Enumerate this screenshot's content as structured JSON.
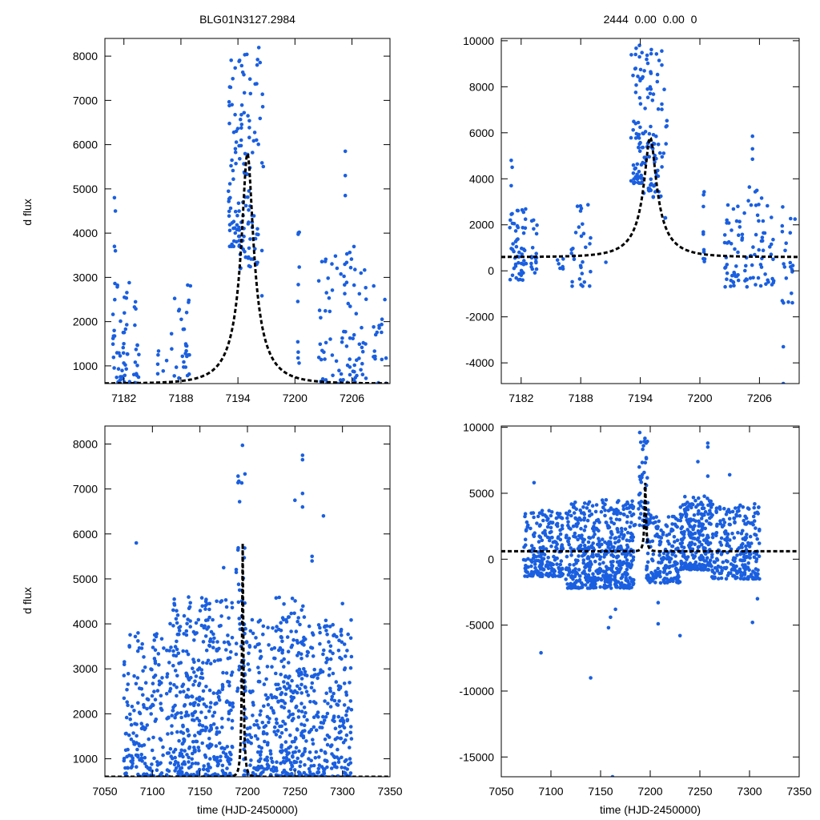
{
  "figure": {
    "title_left": "BLG01N3127.2984",
    "title_right": "2444  0.00  0.00  0",
    "ylabel": "d flux",
    "xlabel": "time (HJD-2450000)"
  },
  "colors": {
    "points": "#1a5fe0",
    "model": "#000000",
    "axes": "#000000"
  },
  "chart_data": [
    {
      "id": "top-left",
      "type": "scatter",
      "xlim": [
        7180,
        7210
      ],
      "ylim": [
        600,
        8400
      ],
      "xticks": [
        7182,
        7188,
        7194,
        7200,
        7206
      ],
      "yticks": [
        1000,
        2000,
        3000,
        4000,
        5000,
        6000,
        7000,
        8000
      ],
      "series": [
        {
          "name": "observations",
          "kind": "scatter",
          "clusters": [
            {
              "x": [
                7180.8,
                7182.6
              ],
              "y": [
                600,
                2900
              ],
              "n": 45,
              "outliers": [
                [
                  7181.0,
                  4800
                ],
                [
                  7181.1,
                  4500
                ],
                [
                  7181.0,
                  3700
                ],
                [
                  7181.1,
                  3600
                ]
              ]
            },
            {
              "x": [
                7183.0,
                7183.6
              ],
              "y": [
                600,
                2500
              ],
              "n": 18
            },
            {
              "x": [
                7185.5,
                7186.5
              ],
              "y": [
                700,
                1400
              ],
              "n": 6
            },
            {
              "x": [
                7187.0,
                7189.0
              ],
              "y": [
                700,
                3050
              ],
              "n": 30
            },
            {
              "x": [
                7193.0,
                7194.2
              ],
              "y": [
                3700,
                8000
              ],
              "n": 60
            },
            {
              "x": [
                7194.2,
                7196.2
              ],
              "y": [
                3200,
                8200
              ],
              "n": 80
            },
            {
              "x": [
                7196.3,
                7196.7
              ],
              "y": [
                2300,
                8100
              ],
              "n": 8
            },
            {
              "x": [
                7200.3,
                7200.5
              ],
              "y": [
                600,
                4050
              ],
              "n": 10
            },
            {
              "x": [
                7202.5,
                7207.5
              ],
              "y": [
                600,
                3700
              ],
              "n": 90,
              "outliers": [
                [
                  7205.3,
                  5850
                ],
                [
                  7205.3,
                  5300
                ],
                [
                  7205.3,
                  4850
                ]
              ]
            },
            {
              "x": [
                7208.2,
                7209.6
              ],
              "y": [
                600,
                2850
              ],
              "n": 20
            }
          ]
        },
        {
          "name": "model",
          "kind": "line",
          "model": {
            "t0": 7195.0,
            "tE": 3.4,
            "u0": 0.17,
            "fs": 1050,
            "fb": -450
          }
        }
      ]
    },
    {
      "id": "top-right",
      "type": "scatter",
      "xlim": [
        7180,
        7210
      ],
      "ylim": [
        -4900,
        10100
      ],
      "xticks": [
        7182,
        7188,
        7194,
        7200,
        7206
      ],
      "yticks": [
        -4000,
        -2000,
        0,
        2000,
        4000,
        6000,
        8000,
        10000
      ],
      "series": [
        {
          "name": "observations",
          "kind": "scatter",
          "clusters": [
            {
              "x": [
                7180.8,
                7182.6
              ],
              "y": [
                -400,
                2800
              ],
              "n": 55,
              "outliers": [
                [
                  7181.0,
                  4800
                ],
                [
                  7181.1,
                  4500
                ],
                [
                  7181.0,
                  3700
                ]
              ]
            },
            {
              "x": [
                7183.0,
                7183.6
              ],
              "y": [
                -300,
                2500
              ],
              "n": 18
            },
            {
              "x": [
                7185.5,
                7186.5
              ],
              "y": [
                -100,
                1400
              ],
              "n": 6
            },
            {
              "x": [
                7187.0,
                7189.0
              ],
              "y": [
                -700,
                3050
              ],
              "n": 30
            },
            {
              "x": [
                7190.5,
                7190.6
              ],
              "y": [
                350,
                400
              ],
              "n": 1
            },
            {
              "x": [
                7193.0,
                7194.2
              ],
              "y": [
                3800,
                10000
              ],
              "n": 60
            },
            {
              "x": [
                7194.2,
                7196.2
              ],
              "y": [
                3200,
                9700
              ],
              "n": 80
            },
            {
              "x": [
                7196.3,
                7196.7
              ],
              "y": [
                2300,
                8100
              ],
              "n": 8
            },
            {
              "x": [
                7200.3,
                7200.5
              ],
              "y": [
                400,
                4050
              ],
              "n": 10
            },
            {
              "x": [
                7202.5,
                7207.5
              ],
              "y": [
                -700,
                3700
              ],
              "n": 95,
              "outliers": [
                [
                  7205.3,
                  5850
                ],
                [
                  7205.3,
                  5300
                ],
                [
                  7205.3,
                  4850
                ]
              ]
            },
            {
              "x": [
                7208.2,
                7209.6
              ],
              "y": [
                -1500,
                2850
              ],
              "n": 20,
              "outliers": [
                [
                  7208.4,
                  -3300
                ],
                [
                  7208.4,
                  -4900
                ],
                [
                  7208.3,
                  -1300
                ]
              ]
            }
          ]
        },
        {
          "name": "model",
          "kind": "line",
          "model": {
            "t0": 7195.0,
            "tE": 3.4,
            "u0": 0.17,
            "fs": 1050,
            "fb": -450
          }
        }
      ]
    },
    {
      "id": "bottom-left",
      "type": "scatter",
      "xlim": [
        7050,
        7350
      ],
      "ylim": [
        600,
        8400
      ],
      "xticks": [
        7050,
        7100,
        7150,
        7200,
        7250,
        7300,
        7350
      ],
      "yticks": [
        1000,
        2000,
        3000,
        4000,
        5000,
        6000,
        7000,
        8000
      ],
      "series": [
        {
          "name": "observations",
          "kind": "scatter",
          "clusters": [
            {
              "x": [
                7070,
                7112
              ],
              "y": [
                600,
                3800
              ],
              "n": 170,
              "outliers": [
                [
                  7083,
                  5800
                ]
              ]
            },
            {
              "x": [
                7115,
                7185
              ],
              "y": [
                600,
                4600
              ],
              "n": 420,
              "outliers": [
                [
                  7123,
                  4550
                ],
                [
                  7123,
                  4450
                ],
                [
                  7175,
                  5250
                ]
              ]
            },
            {
              "x": [
                7188,
                7198
              ],
              "y": [
                2500,
                8200
              ],
              "n": 45
            },
            {
              "x": [
                7196,
                7230
              ],
              "y": [
                600,
                4100
              ],
              "n": 150
            },
            {
              "x": [
                7230,
                7262
              ],
              "y": [
                600,
                4600
              ],
              "n": 230,
              "outliers": [
                [
                  7250,
                  6750
                ],
                [
                  7258,
                  7750
                ],
                [
                  7258,
                  7650
                ],
                [
                  7258,
                  6900
                ],
                [
                  7258,
                  6600
                ],
                [
                  7268,
                  5500
                ],
                [
                  7268,
                  5400
                ]
              ]
            },
            {
              "x": [
                7262,
                7310
              ],
              "y": [
                600,
                4100
              ],
              "n": 230,
              "outliers": [
                [
                  7280,
                  6400
                ],
                [
                  7300,
                  4450
                ]
              ]
            }
          ]
        },
        {
          "name": "model",
          "kind": "line",
          "model": {
            "t0": 7195.0,
            "tE": 3.4,
            "u0": 0.17,
            "fs": 1050,
            "fb": -450
          }
        }
      ]
    },
    {
      "id": "bottom-right",
      "type": "scatter",
      "xlim": [
        7050,
        7350
      ],
      "ylim": [
        -16500,
        10100
      ],
      "xticks": [
        7050,
        7100,
        7150,
        7200,
        7250,
        7300,
        7350
      ],
      "yticks": [
        -15000,
        -10000,
        -5000,
        0,
        5000,
        10000
      ],
      "series": [
        {
          "name": "observations",
          "kind": "scatter",
          "clusters": [
            {
              "x": [
                7072,
                7112
              ],
              "y": [
                -1300,
                3700
              ],
              "n": 220,
              "outliers": [
                [
                  7083,
                  5800
                ],
                [
                  7090,
                  -7100
                ]
              ]
            },
            {
              "x": [
                7115,
                7185
              ],
              "y": [
                -2200,
                4500
              ],
              "n": 520,
              "outliers": [
                [
                  7140,
                  -9000
                ],
                [
                  7162,
                  -16500
                ],
                [
                  7158,
                  -5200
                ],
                [
                  7160,
                  -4400
                ],
                [
                  7165,
                  -3800
                ]
              ]
            },
            {
              "x": [
                7188,
                7198
              ],
              "y": [
                2500,
                10000
              ],
              "n": 45
            },
            {
              "x": [
                7196,
                7230
              ],
              "y": [
                -1800,
                3500
              ],
              "n": 170,
              "outliers": [
                [
                  7208,
                  -4900
                ],
                [
                  7208,
                  -3300
                ],
                [
                  7230,
                  -5800
                ]
              ]
            },
            {
              "x": [
                7230,
                7262
              ],
              "y": [
                -800,
                4800
              ],
              "n": 250,
              "outliers": [
                [
                  7258,
                  8800
                ],
                [
                  7258,
                  8500
                ],
                [
                  7258,
                  6300
                ],
                [
                  7248,
                  7400
                ]
              ]
            },
            {
              "x": [
                7262,
                7310
              ],
              "y": [
                -1500,
                4200
              ],
              "n": 240,
              "outliers": [
                [
                  7280,
                  6400
                ],
                [
                  7303,
                  -4800
                ],
                [
                  7308,
                  -3000
                ]
              ]
            }
          ]
        },
        {
          "name": "model",
          "kind": "line",
          "model": {
            "t0": 7195.0,
            "tE": 3.4,
            "u0": 0.17,
            "fs": 1050,
            "fb": -450
          }
        }
      ]
    }
  ]
}
